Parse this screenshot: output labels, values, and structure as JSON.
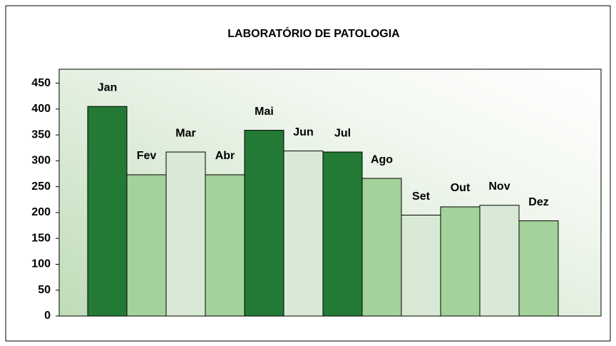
{
  "chart_data": {
    "type": "bar",
    "title": "LABORATÓRIO DE PATOLOGIA",
    "categories": [
      "Jan",
      "Fev",
      "Mar",
      "Abr",
      "Mai",
      "Jun",
      "Jul",
      "Ago",
      "Set",
      "Out",
      "Nov",
      "Dez"
    ],
    "values": [
      405,
      273,
      317,
      273,
      359,
      319,
      317,
      266,
      195,
      211,
      214,
      184
    ],
    "colors": [
      "#237a35",
      "#a3d29a",
      "#d8ead5",
      "#a3d29a",
      "#237a35",
      "#d8ead5",
      "#237a35",
      "#a3d29a",
      "#d8ead5",
      "#a3d29a",
      "#d8ead5",
      "#a3d29a"
    ],
    "ylim": [
      0,
      477
    ],
    "yticks": [
      0,
      50,
      100,
      150,
      200,
      250,
      300,
      350,
      400,
      450
    ],
    "grid": false
  }
}
